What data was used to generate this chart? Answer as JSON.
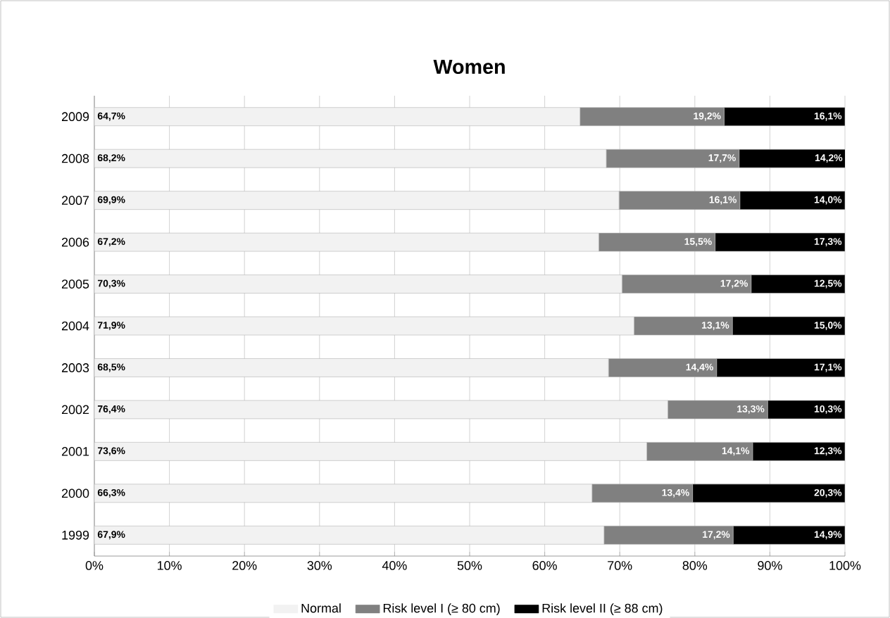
{
  "chart_data": {
    "type": "bar",
    "orientation": "horizontal",
    "stacked": true,
    "title": "Women",
    "categories": [
      "2009",
      "2008",
      "2007",
      "2006",
      "2005",
      "2004",
      "2003",
      "2002",
      "2001",
      "2000",
      "1999"
    ],
    "series": [
      {
        "name": "Normal",
        "color": "#f2f2f2",
        "values": [
          64.7,
          68.2,
          69.9,
          67.2,
          70.3,
          71.9,
          68.5,
          76.4,
          73.6,
          66.3,
          67.9
        ],
        "value_labels": [
          "64,7%",
          "68,2%",
          "69,9%",
          "67,2%",
          "70,3%",
          "71,9%",
          "68,5%",
          "76,4%",
          "73,6%",
          "66,3%",
          "67,9%"
        ]
      },
      {
        "name": "Risk level I (≥ 80 cm)",
        "color": "#808080",
        "values": [
          19.2,
          17.7,
          16.1,
          15.5,
          17.2,
          13.1,
          14.4,
          13.3,
          14.1,
          13.4,
          17.2
        ],
        "value_labels": [
          "19,2%",
          "17,7%",
          "16,1%",
          "15,5%",
          "17,2%",
          "13,1%",
          "14,4%",
          "13,3%",
          "14,1%",
          "13,4%",
          "17,2%"
        ]
      },
      {
        "name": "Risk level II (≥ 88 cm)",
        "color": "#000000",
        "values": [
          16.1,
          14.2,
          14.0,
          17.3,
          12.5,
          15.0,
          17.1,
          10.3,
          12.3,
          20.3,
          14.9
        ],
        "value_labels": [
          "16,1%",
          "14,2%",
          "14,0%",
          "17,3%",
          "12,5%",
          "15,0%",
          "17,1%",
          "10,3%",
          "12,3%",
          "20,3%",
          "14,9%"
        ]
      }
    ],
    "xlim": [
      0,
      100
    ],
    "xticks": [
      {
        "value": 0,
        "label": "0%"
      },
      {
        "value": 10,
        "label": "10%"
      },
      {
        "value": 20,
        "label": "20%"
      },
      {
        "value": 30,
        "label": "30%"
      },
      {
        "value": 40,
        "label": "40%"
      },
      {
        "value": 50,
        "label": "50%"
      },
      {
        "value": 60,
        "label": "60%"
      },
      {
        "value": 70,
        "label": "70%"
      },
      {
        "value": 80,
        "label": "80%"
      },
      {
        "value": 90,
        "label": "90%"
      },
      {
        "value": 100,
        "label": "100%"
      }
    ],
    "grid": "x",
    "legend": "bottom"
  }
}
